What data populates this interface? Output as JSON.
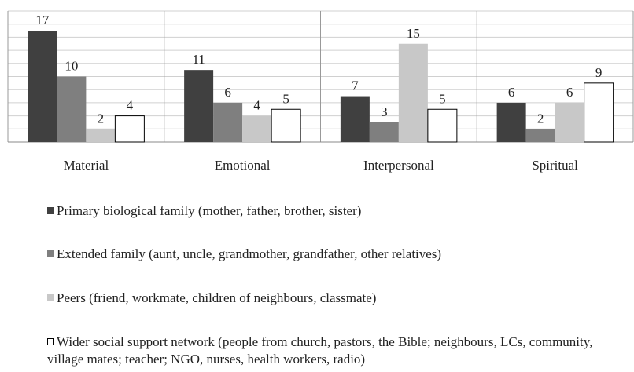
{
  "chart_data": {
    "type": "bar",
    "categories": [
      "Material",
      "Emotional",
      "Interpersonal",
      "Spiritual"
    ],
    "series": [
      {
        "name": "Primary biological family (mother, father, brother, sister)",
        "color": "#404040",
        "values": [
          17,
          11,
          7,
          6
        ]
      },
      {
        "name": "Extended family (aunt, uncle, grandmother, grandfather, other relatives)",
        "color": "#7f7f7f",
        "values": [
          10,
          6,
          3,
          2
        ]
      },
      {
        "name": "Peers (friend, workmate, children of neighbours, classmate)",
        "color": "#c8c8c8",
        "values": [
          2,
          4,
          15,
          6
        ]
      },
      {
        "name": "Wider social support network (people from church, pastors, the Bible; neighbours, LCs, community, village mates; teacher; NGO, nurses, health workers, radio)",
        "color": "#ffffff",
        "values": [
          4,
          5,
          5,
          9
        ]
      }
    ],
    "ylim": [
      0,
      20
    ],
    "yticks": [
      0,
      2,
      4,
      6,
      8,
      10,
      12,
      14,
      16,
      18,
      20
    ],
    "grid": true,
    "legend": "bottom"
  }
}
